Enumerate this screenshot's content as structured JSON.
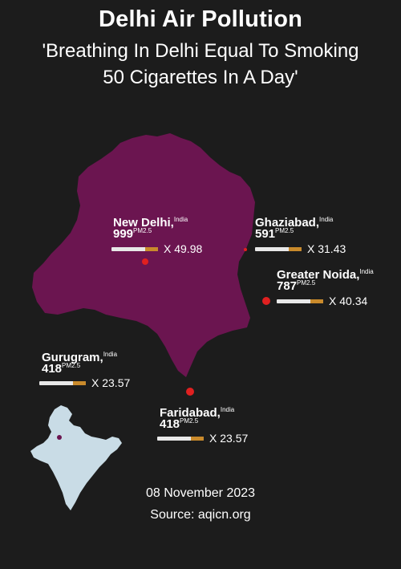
{
  "header": {
    "title": "Delhi Air Pollution",
    "subtitle_line1": "'Breathing In Delhi Equal To Smoking",
    "subtitle_line2": "50 Cigarettes In A Day'"
  },
  "cities": [
    {
      "name": "New Delhi,",
      "country": "India",
      "aqi": "999",
      "unit": "PM2.5",
      "multiplier": "X 49.98"
    },
    {
      "name": "Ghaziabad,",
      "country": "India",
      "aqi": "591",
      "unit": "PM2.5",
      "multiplier": "X 31.43"
    },
    {
      "name": "Greater Noida,",
      "country": "India",
      "aqi": "787",
      "unit": "PM2.5",
      "multiplier": "X 40.34"
    },
    {
      "name": "Gurugram,",
      "country": "India",
      "aqi": "418",
      "unit": "PM2.5",
      "multiplier": "X 23.57"
    },
    {
      "name": "Faridabad,",
      "country": "India",
      "aqi": "418",
      "unit": "PM2.5",
      "multiplier": "X 23.57"
    }
  ],
  "footer": {
    "date": "08 November 2023",
    "source": "Source: aqicn.org"
  },
  "colors": {
    "background": "#1c1c1c",
    "delhi_map": "#6b1550",
    "india_map": "#c9dce6",
    "marker": "#e02020",
    "cigarette_filter": "#c98a2b"
  },
  "icons": [
    "cigarette-icon",
    "location-marker-icon",
    "india-map-icon",
    "delhi-map-icon"
  ]
}
